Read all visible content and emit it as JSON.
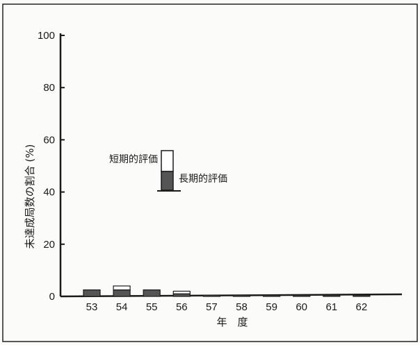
{
  "chart_data": {
    "type": "bar",
    "ylabel": "未達成局数の割合 (%)",
    "xlabel": "年　度",
    "ylim": [
      0,
      100
    ],
    "yticks": [
      0,
      20,
      40,
      60,
      80,
      100
    ],
    "categories": [
      "53",
      "54",
      "55",
      "56",
      "57",
      "58",
      "59",
      "60",
      "61",
      "62"
    ],
    "stacked": true,
    "series": [
      {
        "name": "長期的評価",
        "color": "#555555",
        "values": [
          2.5,
          2.5,
          2.5,
          1.0,
          0.5,
          0.5,
          0.5,
          0.5,
          0.5,
          0.5
        ]
      },
      {
        "name": "短期的評価",
        "color": "#ffffff",
        "values": [
          0.0,
          1.5,
          0.0,
          1.0,
          0.0,
          0.0,
          0.0,
          0.0,
          0.0,
          0.0
        ]
      }
    ],
    "legend": {
      "position": "center-left"
    },
    "grid": false
  }
}
